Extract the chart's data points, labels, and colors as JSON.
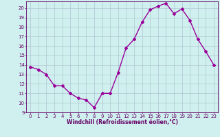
{
  "x": [
    0,
    1,
    2,
    3,
    4,
    5,
    6,
    7,
    8,
    9,
    10,
    11,
    12,
    13,
    14,
    15,
    16,
    17,
    18,
    19,
    20,
    21,
    22,
    23
  ],
  "y": [
    13.8,
    13.5,
    13.0,
    11.8,
    11.8,
    11.0,
    10.5,
    10.3,
    9.5,
    11.0,
    11.0,
    13.2,
    15.8,
    16.7,
    18.5,
    19.8,
    20.2,
    20.5,
    19.4,
    19.9,
    18.7,
    16.7,
    15.4,
    14.0
  ],
  "line_color": "#990099",
  "marker": "D",
  "markersize": 2,
  "linewidth": 1.0,
  "bg_color": "#cff0ee",
  "grid_color": "#aabbcc",
  "xlabel": "Windchill (Refroidissement éolien,°C)",
  "xlabel_color": "#660066",
  "tick_color": "#660066",
  "xlim": [
    -0.5,
    23.5
  ],
  "ylim": [
    9,
    20.7
  ],
  "yticks": [
    9,
    10,
    11,
    12,
    13,
    14,
    15,
    16,
    17,
    18,
    19,
    20
  ],
  "xticks": [
    0,
    1,
    2,
    3,
    4,
    5,
    6,
    7,
    8,
    9,
    10,
    11,
    12,
    13,
    14,
    15,
    16,
    17,
    18,
    19,
    20,
    21,
    22,
    23
  ],
  "axis_color": "#660066"
}
